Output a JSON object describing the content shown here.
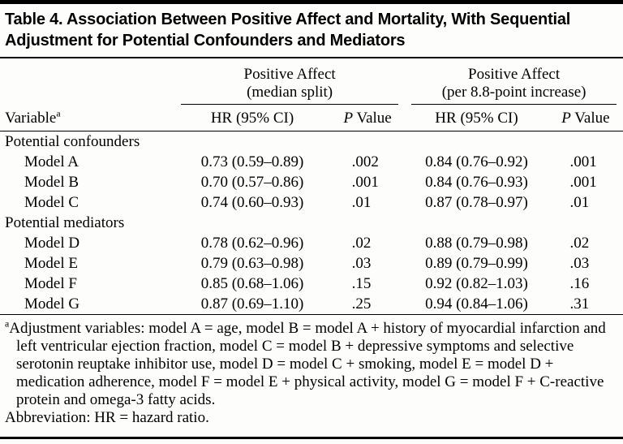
{
  "title": "Table 4. Association Between Positive Affect and Mortality, With Sequential Adjustment for Potential Confounders and Mediators",
  "colors": {
    "text": "#000000",
    "background": "#fdfdfb",
    "rule": "#000000"
  },
  "header": {
    "spanner1_line1": "Positive Affect",
    "spanner1_line2": "(median split)",
    "spanner2_line1": "Positive Affect",
    "spanner2_line2": "(per 8.8-point increase)",
    "variable_label": "Variable",
    "variable_sup": "a",
    "hr_label": "HR (95% CI)",
    "p_italic": "P",
    "p_word": "Value"
  },
  "groups": [
    {
      "label": "Potential confounders",
      "rows": [
        {
          "variable": "Model A",
          "hr1": "0.73 (0.59–0.89)",
          "p1": ".002",
          "hr2": "0.84 (0.76–0.92)",
          "p2": ".001"
        },
        {
          "variable": "Model B",
          "hr1": "0.70 (0.57–0.86)",
          "p1": ".001",
          "hr2": "0.84 (0.76–0.93)",
          "p2": ".001"
        },
        {
          "variable": "Model C",
          "hr1": "0.74 (0.60–0.93)",
          "p1": ".01",
          "hr2": "0.87 (0.78–0.97)",
          "p2": ".01"
        }
      ]
    },
    {
      "label": "Potential mediators",
      "rows": [
        {
          "variable": "Model D",
          "hr1": "0.78 (0.62–0.96)",
          "p1": ".02",
          "hr2": "0.88 (0.79–0.98)",
          "p2": ".02"
        },
        {
          "variable": "Model E",
          "hr1": "0.79 (0.63–0.98)",
          "p1": ".03",
          "hr2": "0.89 (0.79–0.99)",
          "p2": ".03"
        },
        {
          "variable": "Model F",
          "hr1": "0.85 (0.68–1.06)",
          "p1": ".15",
          "hr2": "0.92 (0.82–1.03)",
          "p2": ".16"
        },
        {
          "variable": "Model G",
          "hr1": "0.87 (0.69–1.10)",
          "p1": ".25",
          "hr2": "0.94 (0.84–1.06)",
          "p2": ".31"
        }
      ]
    }
  ],
  "footnotes": {
    "marker": "a",
    "adjustment_text": "Adjustment variables: model A = age, model B = model A + history of myocardial infarction and left ventricular ejection fraction, model C = model B + depressive symptoms and selective serotonin reuptake inhibitor use, model D = model C + smoking, model E = model D + medication adherence, model F = model E + physical activity, model G = model F + C-reactive protein and omega-3 fatty acids.",
    "abbreviation": "Abbreviation: HR = hazard ratio."
  }
}
